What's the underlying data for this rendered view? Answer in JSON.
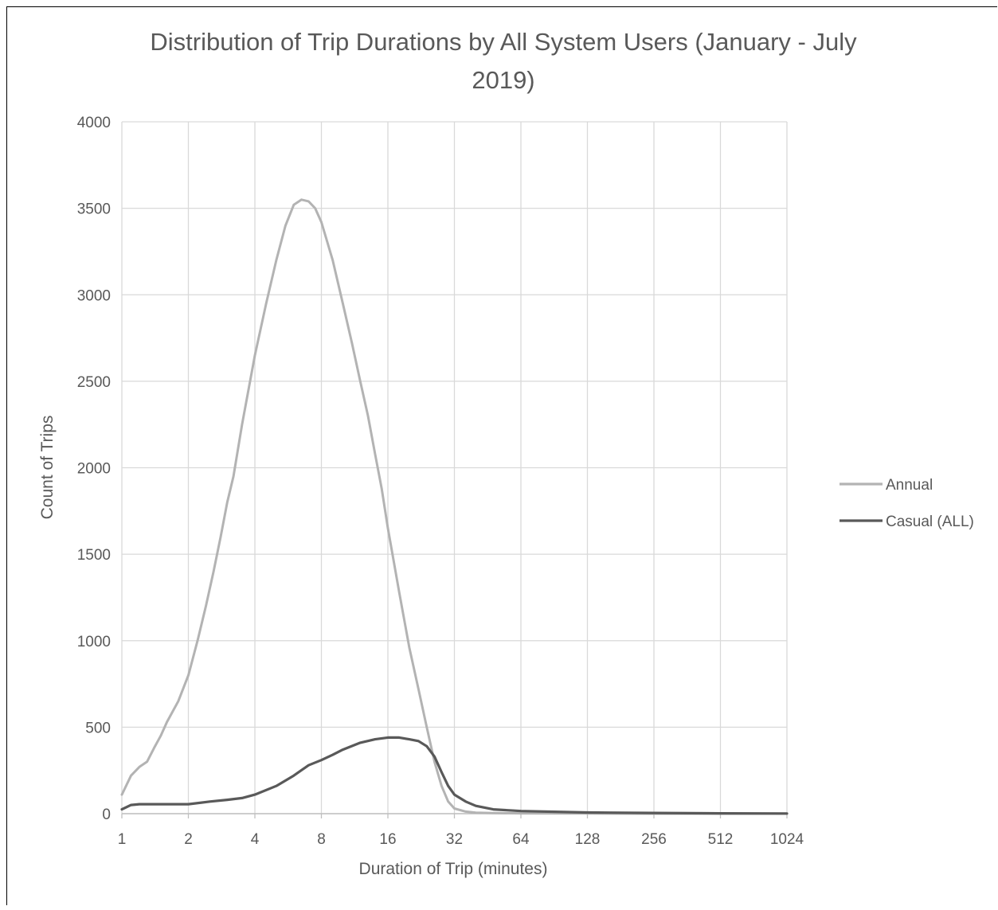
{
  "chart_data": {
    "type": "line",
    "title_line1": "Distribution of Trip Durations by All System Users (January - July",
    "title_line2": "2019)",
    "xlabel": "Duration of Trip (minutes)",
    "ylabel": "Count of Trips",
    "x_scale": "log2",
    "xlim": [
      1,
      1024
    ],
    "ylim": [
      0,
      4000
    ],
    "x_ticks": [
      "1",
      "2",
      "4",
      "8",
      "16",
      "32",
      "64",
      "128",
      "256",
      "512",
      "1024"
    ],
    "y_ticks": [
      "0",
      "500",
      "1000",
      "1500",
      "2000",
      "2500",
      "3000",
      "3500",
      "4000"
    ],
    "grid": true,
    "legend_position": "right",
    "series": [
      {
        "name": "Annual",
        "color": "#b3b3b3",
        "x": [
          1,
          1.1,
          1.2,
          1.3,
          1.4,
          1.5,
          1.6,
          1.8,
          2,
          2.2,
          2.4,
          2.6,
          2.8,
          3,
          3.2,
          3.5,
          4,
          4.5,
          5,
          5.5,
          6,
          6.5,
          7,
          7.5,
          8,
          9,
          10,
          11,
          12,
          13,
          14,
          15,
          16,
          18,
          20,
          22,
          24,
          26,
          28,
          30,
          32,
          36,
          40,
          48,
          64,
          128,
          256,
          512,
          1024
        ],
        "y": [
          110,
          220,
          270,
          300,
          380,
          450,
          530,
          650,
          800,
          1000,
          1200,
          1400,
          1600,
          1800,
          1950,
          2250,
          2650,
          2950,
          3200,
          3400,
          3520,
          3550,
          3540,
          3500,
          3420,
          3200,
          2950,
          2720,
          2500,
          2300,
          2080,
          1880,
          1650,
          1280,
          960,
          720,
          500,
          300,
          160,
          70,
          30,
          12,
          6,
          3,
          2,
          1,
          0,
          0,
          0
        ]
      },
      {
        "name": "Casual (ALL)",
        "color": "#595959",
        "x": [
          1,
          1.1,
          1.2,
          1.3,
          1.5,
          1.8,
          2,
          2.5,
          3,
          3.5,
          4,
          5,
          6,
          7,
          8,
          9,
          10,
          12,
          14,
          16,
          18,
          20,
          22,
          24,
          26,
          28,
          30,
          32,
          36,
          40,
          48,
          64,
          128,
          256,
          512,
          1024
        ],
        "y": [
          25,
          50,
          55,
          55,
          55,
          55,
          55,
          70,
          80,
          90,
          110,
          160,
          220,
          280,
          310,
          340,
          370,
          410,
          430,
          440,
          440,
          430,
          420,
          390,
          330,
          240,
          160,
          110,
          70,
          45,
          25,
          15,
          7,
          4,
          2,
          1
        ]
      }
    ]
  }
}
